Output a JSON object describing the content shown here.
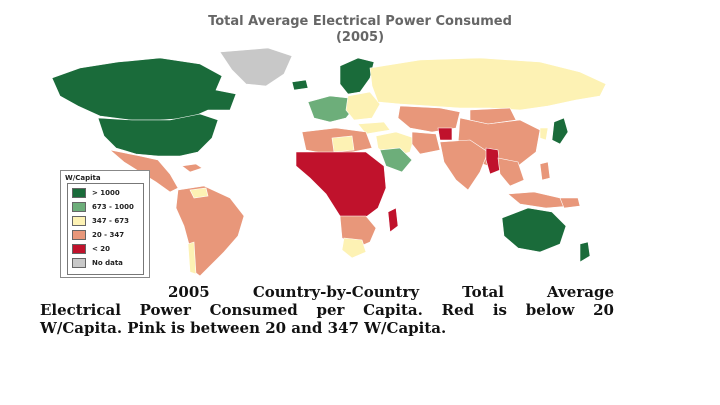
{
  "map": {
    "title": "Total Average Electrical Power Consumed",
    "year": "(2005)"
  },
  "legend": {
    "title": "W/Capita",
    "items": [
      {
        "label": "> 1000",
        "color": "#1a6b3a"
      },
      {
        "label": "673 - 1000",
        "color": "#6dae7a"
      },
      {
        "label": "347 - 673",
        "color": "#fdf2b4"
      },
      {
        "label": "20 - 347",
        "color": "#e8977a"
      },
      {
        "label": "< 20",
        "color": "#c0122c"
      },
      {
        "label": "No data",
        "color": "#c8c8c8"
      }
    ]
  },
  "caption": {
    "line1": "2005 Country-by-Country Total Average",
    "line2": "Electrical Power Consumed per Capita. Red is below 20",
    "line3": "W/Capita. Pink is between 20 and 347 W/Capita."
  },
  "colors": {
    "high": "#1a6b3a",
    "upper_mid": "#6dae7a",
    "mid": "#fdf2b4",
    "low": "#e8977a",
    "very_low": "#c0122c",
    "no_data": "#c8c8c8"
  }
}
